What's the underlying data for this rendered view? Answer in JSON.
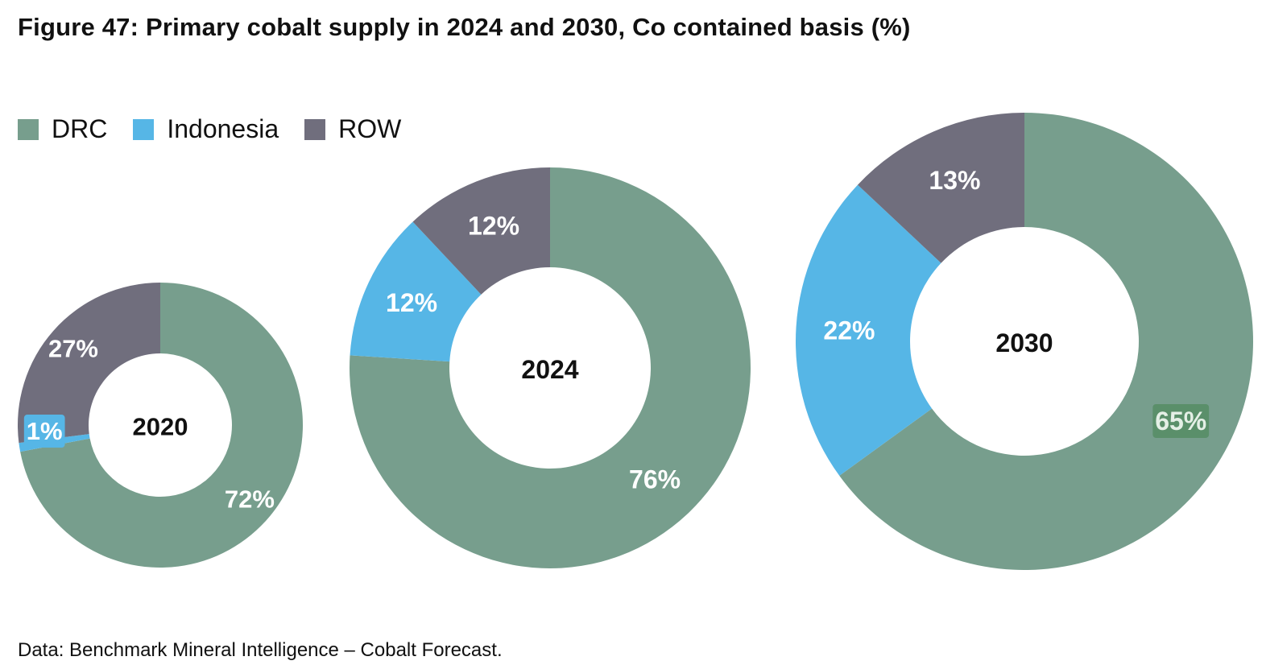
{
  "chart_data": {
    "type": "pie",
    "title": "Figure 47: Primary cobalt supply in 2024 and 2030, Co contained basis (%)",
    "legend": [
      {
        "name": "DRC",
        "color": "#779e8d"
      },
      {
        "name": "Indonesia",
        "color": "#56b6e6"
      },
      {
        "name": "ROW",
        "color": "#706e7d"
      }
    ],
    "charts": [
      {
        "center_label": "2020",
        "slices": [
          {
            "name": "DRC",
            "value": 72,
            "label": "72%"
          },
          {
            "name": "Indonesia",
            "value": 1,
            "label": "1%"
          },
          {
            "name": "ROW",
            "value": 27,
            "label": "27%"
          }
        ]
      },
      {
        "center_label": "2024",
        "slices": [
          {
            "name": "DRC",
            "value": 76,
            "label": "76%"
          },
          {
            "name": "Indonesia",
            "value": 12,
            "label": "12%"
          },
          {
            "name": "ROW",
            "value": 12,
            "label": "12%"
          }
        ]
      },
      {
        "center_label": "2030",
        "slices": [
          {
            "name": "DRC",
            "value": 65,
            "label": "65%"
          },
          {
            "name": "Indonesia",
            "value": 22,
            "label": "22%"
          },
          {
            "name": "ROW",
            "value": 13,
            "label": "13%"
          }
        ]
      }
    ]
  },
  "footer": {
    "source": "Data: Benchmark Mineral Intelligence – Cobalt Forecast."
  }
}
